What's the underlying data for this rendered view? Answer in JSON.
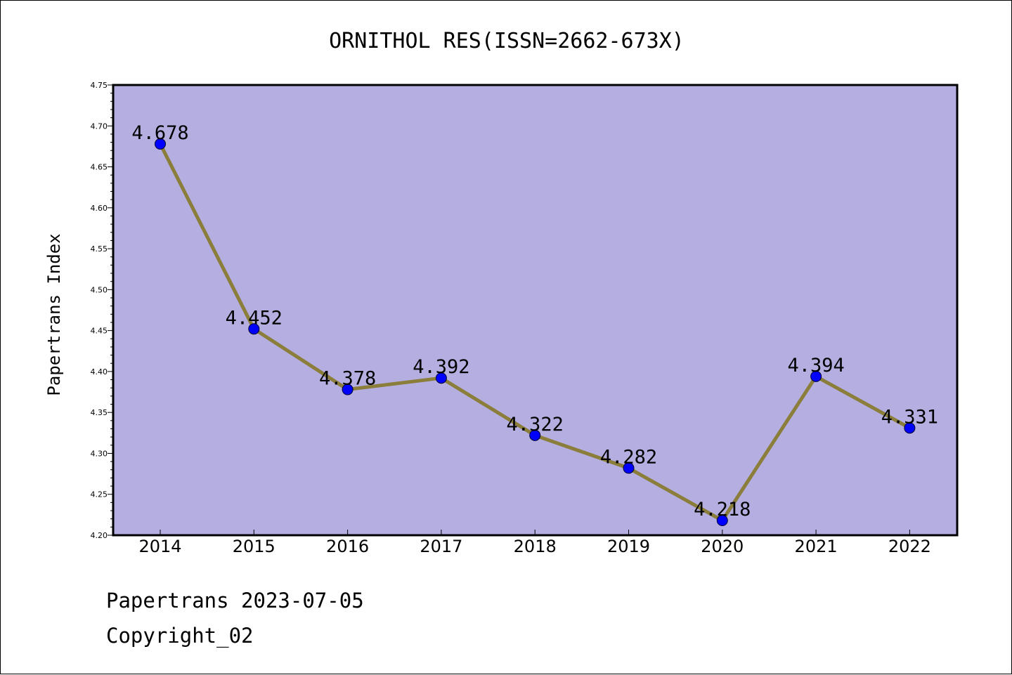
{
  "chart_data": {
    "type": "line",
    "title": "ORNITHOL RES(ISSN=2662-673X)",
    "xlabel": "",
    "ylabel": "Papertrans Index",
    "categories": [
      "2014",
      "2015",
      "2016",
      "2017",
      "2018",
      "2019",
      "2020",
      "2021",
      "2022"
    ],
    "series": [
      {
        "values": [
          4.678,
          4.452,
          4.378,
          4.392,
          4.322,
          4.282,
          4.218,
          4.394,
          4.331
        ],
        "data_labels": [
          "4.678",
          "4.452",
          "4.378",
          "4.392",
          "4.322",
          "4.282",
          "4.218",
          "4.394",
          "4.331"
        ]
      }
    ],
    "ylim": [
      4.2,
      4.75
    ],
    "yticks": [
      "4.20",
      "4.25",
      "4.30",
      "4.35",
      "4.40",
      "4.45",
      "4.50",
      "4.55",
      "4.60",
      "4.65",
      "4.70",
      "4.75"
    ],
    "grid": false,
    "legend": "none",
    "colors": {
      "plot_background": "#b4aee1",
      "line": "#8b7d3a",
      "marker": "#0000ff",
      "axis": "#000000"
    }
  },
  "footer": {
    "line1": "Papertrans 2023-07-05",
    "line2": "Copyright_02"
  }
}
